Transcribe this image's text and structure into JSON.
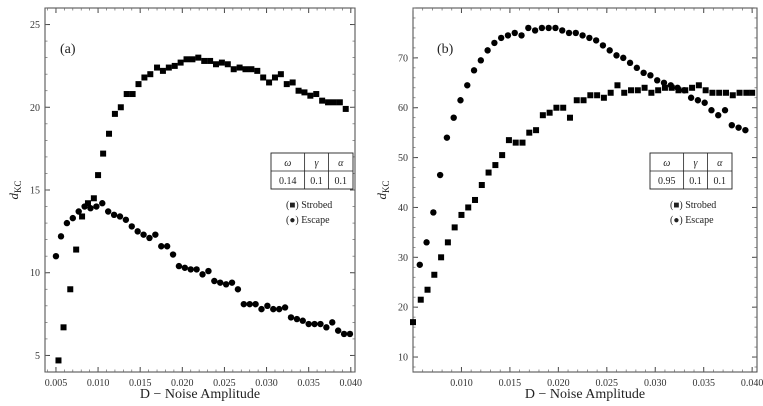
{
  "chart_data": [
    {
      "type": "scatter",
      "panel_label": "(a)",
      "xlabel": "D − Noise Amplitude",
      "ylabel": "d",
      "ylabel_sub": "KC",
      "xlim": [
        0.0037,
        0.0405
      ],
      "ylim": [
        4.0,
        26.0
      ],
      "xticks": [
        0.005,
        0.01,
        0.015,
        0.02,
        0.025,
        0.03,
        0.035,
        0.04
      ],
      "xtick_labels": [
        "0.005",
        "0.010",
        "0.015",
        "0.020",
        "0.025",
        "0.030",
        "0.035",
        "0.040"
      ],
      "yticks": [
        5,
        10,
        15,
        20,
        25
      ],
      "ytick_labels": [
        "5",
        "10",
        "15",
        "20",
        "25"
      ],
      "params": {
        "headers": [
          "ω",
          "γ",
          "α"
        ],
        "values": [
          "0.14",
          "0.1",
          "0.1"
        ]
      },
      "legend": [
        "(■) Strobed",
        "(●) Escape"
      ],
      "series": [
        {
          "name": "Strobed",
          "marker": "square",
          "points": [
            [
              0.0053,
              4.7
            ],
            [
              0.0059,
              6.7
            ],
            [
              0.0067,
              9.0
            ],
            [
              0.0074,
              11.4
            ],
            [
              0.0081,
              13.4
            ],
            [
              0.0088,
              14.2
            ],
            [
              0.0095,
              14.5
            ],
            [
              0.01,
              15.9
            ],
            [
              0.0106,
              17.2
            ],
            [
              0.0113,
              18.4
            ],
            [
              0.012,
              19.6
            ],
            [
              0.0127,
              20.0
            ],
            [
              0.0134,
              20.8
            ],
            [
              0.0141,
              20.8
            ],
            [
              0.0148,
              21.4
            ],
            [
              0.0155,
              21.8
            ],
            [
              0.0162,
              22.0
            ],
            [
              0.017,
              22.4
            ],
            [
              0.0177,
              22.2
            ],
            [
              0.0184,
              22.4
            ],
            [
              0.0191,
              22.5
            ],
            [
              0.0198,
              22.7
            ],
            [
              0.0205,
              22.9
            ],
            [
              0.0212,
              22.9
            ],
            [
              0.0219,
              23.0
            ],
            [
              0.0226,
              22.8
            ],
            [
              0.0233,
              22.8
            ],
            [
              0.024,
              22.6
            ],
            [
              0.0247,
              22.7
            ],
            [
              0.0254,
              22.6
            ],
            [
              0.0261,
              22.3
            ],
            [
              0.0268,
              22.4
            ],
            [
              0.0275,
              22.3
            ],
            [
              0.0282,
              22.3
            ],
            [
              0.0289,
              22.2
            ],
            [
              0.0296,
              21.8
            ],
            [
              0.0303,
              21.5
            ],
            [
              0.031,
              21.8
            ],
            [
              0.0317,
              22.0
            ],
            [
              0.0324,
              21.4
            ],
            [
              0.0331,
              21.5
            ],
            [
              0.0338,
              21.0
            ],
            [
              0.0345,
              20.9
            ],
            [
              0.0352,
              20.7
            ],
            [
              0.0359,
              20.8
            ],
            [
              0.0366,
              20.4
            ],
            [
              0.0373,
              20.3
            ],
            [
              0.038,
              20.3
            ],
            [
              0.0387,
              20.3
            ],
            [
              0.0394,
              19.9
            ]
          ]
        },
        {
          "name": "Escape",
          "marker": "circle",
          "points": [
            [
              0.005,
              11.0
            ],
            [
              0.0056,
              12.2
            ],
            [
              0.0063,
              13.0
            ],
            [
              0.007,
              13.3
            ],
            [
              0.0077,
              13.7
            ],
            [
              0.0084,
              14.0
            ],
            [
              0.0091,
              13.9
            ],
            [
              0.0098,
              14.0
            ],
            [
              0.0105,
              14.2
            ],
            [
              0.0112,
              13.7
            ],
            [
              0.0119,
              13.5
            ],
            [
              0.0126,
              13.4
            ],
            [
              0.0133,
              13.2
            ],
            [
              0.014,
              12.8
            ],
            [
              0.0147,
              12.5
            ],
            [
              0.0154,
              12.3
            ],
            [
              0.0161,
              12.1
            ],
            [
              0.0168,
              12.3
            ],
            [
              0.0175,
              11.6
            ],
            [
              0.0182,
              11.6
            ],
            [
              0.0189,
              11.1
            ],
            [
              0.0196,
              10.4
            ],
            [
              0.0203,
              10.3
            ],
            [
              0.021,
              10.2
            ],
            [
              0.0217,
              10.2
            ],
            [
              0.0224,
              9.9
            ],
            [
              0.0231,
              10.1
            ],
            [
              0.0238,
              9.5
            ],
            [
              0.0245,
              9.4
            ],
            [
              0.0252,
              9.3
            ],
            [
              0.0259,
              9.4
            ],
            [
              0.0266,
              9.0
            ],
            [
              0.0273,
              8.1
            ],
            [
              0.028,
              8.1
            ],
            [
              0.0287,
              8.1
            ],
            [
              0.0294,
              7.8
            ],
            [
              0.0301,
              8.0
            ],
            [
              0.0308,
              7.8
            ],
            [
              0.0315,
              7.8
            ],
            [
              0.0322,
              7.9
            ],
            [
              0.0329,
              7.3
            ],
            [
              0.0336,
              7.2
            ],
            [
              0.0343,
              7.1
            ],
            [
              0.035,
              6.9
            ],
            [
              0.0357,
              6.9
            ],
            [
              0.0364,
              6.9
            ],
            [
              0.0371,
              6.7
            ],
            [
              0.0378,
              7.0
            ],
            [
              0.0385,
              6.5
            ],
            [
              0.0392,
              6.3
            ],
            [
              0.0399,
              6.3
            ]
          ]
        }
      ]
    },
    {
      "type": "scatter",
      "panel_label": "(b)",
      "xlabel": "D − Noise Amplitude",
      "ylabel": "d",
      "ylabel_sub": "KC",
      "xlim": [
        0.005,
        0.0405
      ],
      "ylim": [
        7.0,
        80.0
      ],
      "xticks": [
        0.01,
        0.015,
        0.02,
        0.025,
        0.03,
        0.035,
        0.04
      ],
      "xtick_labels": [
        "0.010",
        "0.015",
        "0.020",
        "0.025",
        "0.030",
        "0.035",
        "0.040"
      ],
      "yticks": [
        10,
        20,
        30,
        40,
        50,
        60,
        70
      ],
      "ytick_labels": [
        "10",
        "20",
        "30",
        "40",
        "50",
        "60",
        "70"
      ],
      "params": {
        "headers": [
          "ω",
          "γ",
          "α"
        ],
        "values": [
          "0.95",
          "0.1",
          "0.1"
        ]
      },
      "legend": [
        "(■) Strobed",
        "(●) Escape"
      ],
      "series": [
        {
          "name": "Strobed",
          "marker": "square",
          "points": [
            [
              0.005,
              17.0
            ],
            [
              0.0058,
              21.5
            ],
            [
              0.0065,
              23.5
            ],
            [
              0.0072,
              26.5
            ],
            [
              0.0079,
              30.0
            ],
            [
              0.0086,
              33.0
            ],
            [
              0.0093,
              36.0
            ],
            [
              0.01,
              38.5
            ],
            [
              0.0107,
              40.0
            ],
            [
              0.0114,
              41.5
            ],
            [
              0.0121,
              44.5
            ],
            [
              0.0128,
              47.0
            ],
            [
              0.0135,
              48.5
            ],
            [
              0.0142,
              50.5
            ],
            [
              0.0149,
              53.5
            ],
            [
              0.0156,
              53.0
            ],
            [
              0.0163,
              53.0
            ],
            [
              0.017,
              55.0
            ],
            [
              0.0177,
              55.5
            ],
            [
              0.0184,
              58.5
            ],
            [
              0.0191,
              59.0
            ],
            [
              0.0198,
              60.0
            ],
            [
              0.0205,
              60.0
            ],
            [
              0.0212,
              58.0
            ],
            [
              0.0219,
              61.5
            ],
            [
              0.0226,
              61.5
            ],
            [
              0.0233,
              62.5
            ],
            [
              0.024,
              62.5
            ],
            [
              0.0247,
              62.0
            ],
            [
              0.0254,
              63.0
            ],
            [
              0.0261,
              64.5
            ],
            [
              0.0268,
              63.0
            ],
            [
              0.0275,
              63.5
            ],
            [
              0.0282,
              63.5
            ],
            [
              0.0289,
              64.0
            ],
            [
              0.0296,
              63.0
            ],
            [
              0.0303,
              63.5
            ],
            [
              0.031,
              64.0
            ],
            [
              0.0317,
              64.0
            ],
            [
              0.0324,
              63.5
            ],
            [
              0.0331,
              63.5
            ],
            [
              0.0338,
              64.0
            ],
            [
              0.0345,
              64.5
            ],
            [
              0.0352,
              63.5
            ],
            [
              0.0359,
              63.0
            ],
            [
              0.0366,
              63.0
            ],
            [
              0.0373,
              63.0
            ],
            [
              0.038,
              62.5
            ],
            [
              0.0387,
              63.0
            ],
            [
              0.0394,
              63.0
            ],
            [
              0.04,
              63.0
            ]
          ]
        },
        {
          "name": "Escape",
          "marker": "circle",
          "points": [
            [
              0.0057,
              28.5
            ],
            [
              0.0064,
              33.0
            ],
            [
              0.0071,
              39.0
            ],
            [
              0.0078,
              46.5
            ],
            [
              0.0085,
              54.0
            ],
            [
              0.0092,
              58.0
            ],
            [
              0.0099,
              61.5
            ],
            [
              0.0106,
              64.5
            ],
            [
              0.0113,
              67.5
            ],
            [
              0.012,
              69.5
            ],
            [
              0.0127,
              71.5
            ],
            [
              0.0134,
              73.0
            ],
            [
              0.0141,
              74.0
            ],
            [
              0.0148,
              74.5
            ],
            [
              0.0155,
              75.0
            ],
            [
              0.0162,
              74.5
            ],
            [
              0.0169,
              76.0
            ],
            [
              0.0176,
              75.5
            ],
            [
              0.0183,
              76.0
            ],
            [
              0.019,
              76.0
            ],
            [
              0.0197,
              76.0
            ],
            [
              0.0204,
              75.5
            ],
            [
              0.0211,
              75.0
            ],
            [
              0.0218,
              75.0
            ],
            [
              0.0225,
              74.5
            ],
            [
              0.0232,
              74.0
            ],
            [
              0.0239,
              73.5
            ],
            [
              0.0246,
              72.5
            ],
            [
              0.0253,
              71.5
            ],
            [
              0.026,
              70.5
            ],
            [
              0.0267,
              70.0
            ],
            [
              0.0274,
              69.0
            ],
            [
              0.0281,
              68.0
            ],
            [
              0.0288,
              67.0
            ],
            [
              0.0295,
              66.5
            ],
            [
              0.0302,
              65.5
            ],
            [
              0.0309,
              65.0
            ],
            [
              0.0316,
              64.5
            ],
            [
              0.0323,
              64.0
            ],
            [
              0.033,
              63.5
            ],
            [
              0.0337,
              62.0
            ],
            [
              0.0344,
              61.5
            ],
            [
              0.0351,
              61.0
            ],
            [
              0.0358,
              59.5
            ],
            [
              0.0365,
              58.5
            ],
            [
              0.0372,
              59.5
            ],
            [
              0.0379,
              56.5
            ],
            [
              0.0386,
              56.0
            ],
            [
              0.0393,
              55.5
            ]
          ]
        }
      ]
    }
  ]
}
